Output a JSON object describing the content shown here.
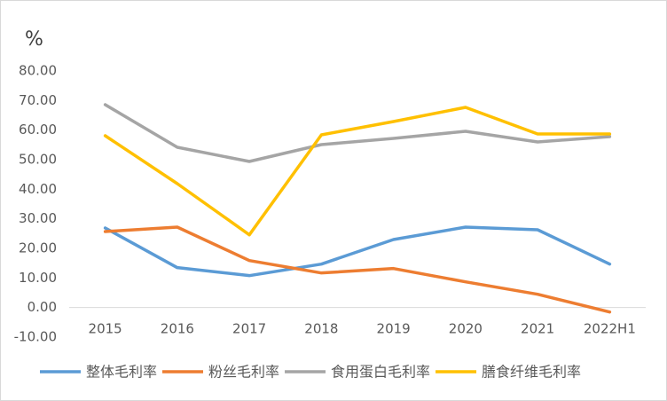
{
  "chart_data": {
    "type": "line",
    "y_label": "%",
    "categories": [
      "2015",
      "2016",
      "2017",
      "2018",
      "2019",
      "2020",
      "2021",
      "2022H1"
    ],
    "series": [
      {
        "name": "整体毛利率",
        "color": "#5b9bd5",
        "values": [
          26.9,
          13.5,
          10.8,
          14.7,
          23.0,
          27.2,
          26.3,
          14.7
        ]
      },
      {
        "name": "粉丝毛利率",
        "color": "#ed7d31",
        "values": [
          25.7,
          27.2,
          15.9,
          11.7,
          13.2,
          8.7,
          4.5,
          -1.5
        ]
      },
      {
        "name": "食用蛋白毛利率",
        "color": "#a5a5a5",
        "values": [
          68.6,
          54.2,
          49.4,
          55.1,
          57.2,
          59.6,
          56.0,
          57.8
        ]
      },
      {
        "name": "膳食纤维毛利率",
        "color": "#ffc000",
        "values": [
          58.1,
          41.9,
          24.6,
          58.4,
          62.9,
          67.7,
          58.7,
          58.7
        ]
      }
    ],
    "ylim": [
      -10,
      80
    ],
    "yticks": [
      {
        "value": -10,
        "label": "-10.00"
      },
      {
        "value": 0,
        "label": "0.00"
      },
      {
        "value": 10,
        "label": "10.00"
      },
      {
        "value": 20,
        "label": "20.00"
      },
      {
        "value": 30,
        "label": "30.00"
      },
      {
        "value": 40,
        "label": "40.00"
      },
      {
        "value": 50,
        "label": "50.00"
      },
      {
        "value": 60,
        "label": "60.00"
      },
      {
        "value": 70,
        "label": "70.00"
      },
      {
        "value": 80,
        "label": "80.00"
      }
    ],
    "grid": false
  }
}
